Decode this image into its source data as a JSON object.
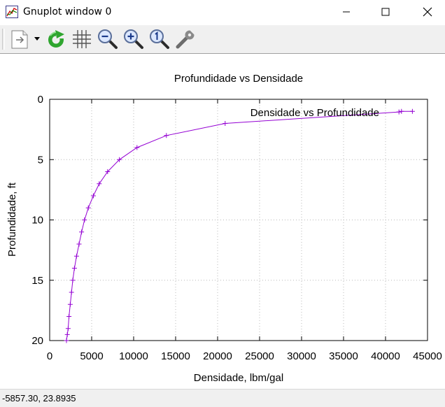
{
  "window": {
    "title": "Gnuplot window 0"
  },
  "toolbar": {
    "buttons": [
      {
        "name": "copy-print-menu-icon"
      },
      {
        "name": "replot-icon"
      },
      {
        "name": "grid-icon"
      },
      {
        "name": "zoom-out-icon"
      },
      {
        "name": "zoom-in-icon"
      },
      {
        "name": "zoom-reset-icon"
      },
      {
        "name": "options-wrench-icon"
      }
    ]
  },
  "status": {
    "coords": "-5857.30,  23.8935"
  },
  "colors": {
    "series": "#9400d3",
    "grid": "#b8b8b8"
  },
  "chart_data": {
    "type": "line",
    "title": "Profundidade vs Densidade",
    "xlabel": "Densidade, lbm/gal",
    "ylabel": "Profundidade, ft",
    "xlim": [
      0,
      45000
    ],
    "ylim": [
      0,
      20
    ],
    "y_reversed": true,
    "grid": true,
    "legend_position": "top-right",
    "x_ticks": [
      0,
      5000,
      10000,
      15000,
      20000,
      25000,
      30000,
      35000,
      40000,
      45000
    ],
    "y_ticks": [
      0,
      5,
      10,
      15,
      20
    ],
    "series": [
      {
        "name": "Densidade vs Profundidade",
        "x": [
          43200,
          41900,
          41600,
          20900,
          13900,
          10400,
          8300,
          6900,
          5900,
          5200,
          4600,
          4150,
          3800,
          3500,
          3200,
          2950,
          2750,
          2600,
          2450,
          2300,
          2200,
          2100,
          2000
        ],
        "y": [
          1.0,
          1.0,
          1.05,
          2.0,
          3.0,
          4.0,
          5.0,
          6.0,
          7.0,
          8.0,
          9.0,
          10.0,
          11.0,
          12.0,
          13.0,
          14.0,
          15.0,
          16.0,
          17.0,
          18.0,
          19.0,
          19.5,
          20.0
        ]
      }
    ]
  }
}
